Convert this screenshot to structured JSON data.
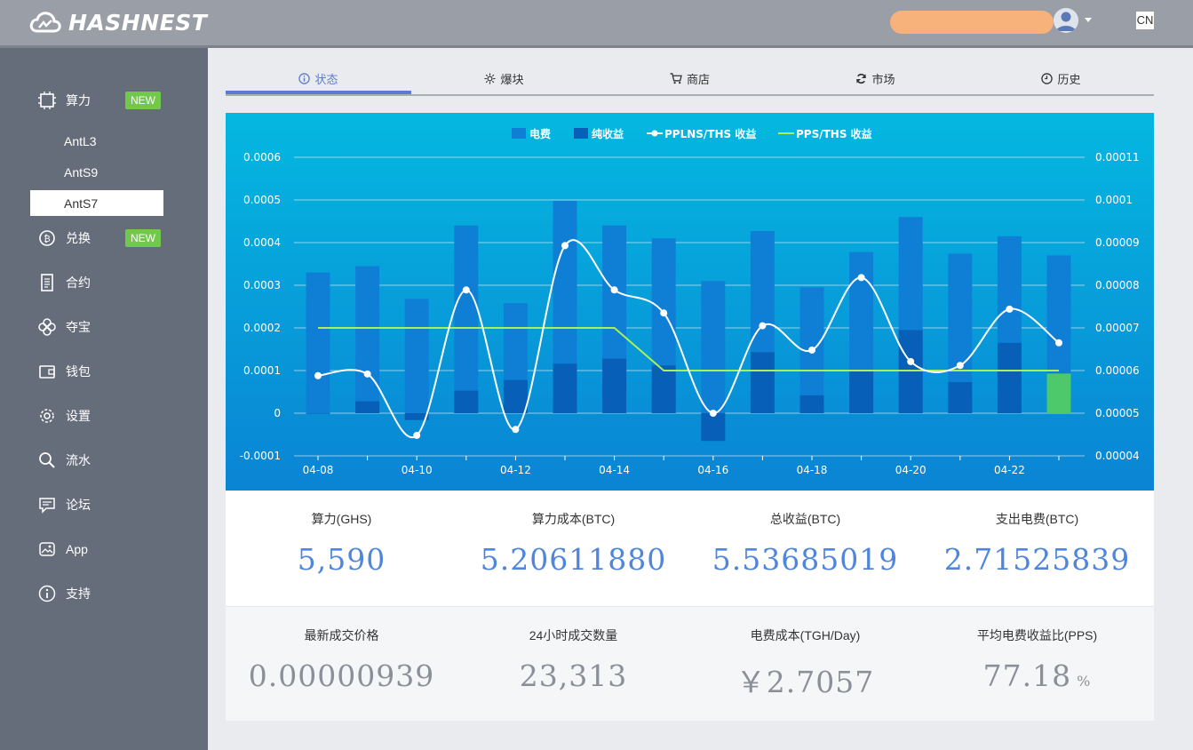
{
  "header": {
    "logo_text": "HASHNEST",
    "lang": "CN",
    "avatar_icon": "user-avatar-icon"
  },
  "sidebar": {
    "items": [
      {
        "label": "算力",
        "icon": "chip-icon",
        "badge": "NEW"
      },
      {
        "label": "兑换",
        "icon": "bitcoin-exchange-icon",
        "badge": "NEW"
      },
      {
        "label": "合约",
        "icon": "contract-icon"
      },
      {
        "label": "夺宝",
        "icon": "clover-icon"
      },
      {
        "label": "钱包",
        "icon": "wallet-icon"
      },
      {
        "label": "设置",
        "icon": "gear-icon"
      },
      {
        "label": "流水",
        "icon": "search-icon"
      },
      {
        "label": "论坛",
        "icon": "chat-icon"
      },
      {
        "label": "App",
        "icon": "app-image-icon"
      },
      {
        "label": "支持",
        "icon": "info-icon"
      }
    ],
    "sub_items": [
      "AntL3",
      "AntS9",
      "AntS7"
    ],
    "active_sub": "AntS7"
  },
  "tabs": [
    {
      "label": "状态",
      "icon": "info-circle-icon",
      "active": true
    },
    {
      "label": "爆块",
      "icon": "sun-icon"
    },
    {
      "label": "商店",
      "icon": "cart-icon"
    },
    {
      "label": "市场",
      "icon": "refresh-icon"
    },
    {
      "label": "历史",
      "icon": "clock-icon"
    }
  ],
  "chart_data": {
    "type": "bar",
    "legend": [
      {
        "name": "电费",
        "color": "#0f7fd6"
      },
      {
        "name": "纯收益",
        "color": "#075fb8"
      },
      {
        "name": "PPLNS/THS 收益",
        "color": "#ffffff"
      },
      {
        "name": "PPS/THS 收益",
        "color": "#a9f05a"
      }
    ],
    "legend_position": "top-center",
    "categories": [
      "04-08",
      "04-09",
      "04-10",
      "04-11",
      "04-12",
      "04-13",
      "04-14",
      "04-15",
      "04-16",
      "04-17",
      "04-18",
      "04-19",
      "04-20",
      "04-21",
      "04-22",
      "04-23"
    ],
    "x_tick_labels": [
      "04-08",
      "04-10",
      "04-12",
      "04-14",
      "04-16",
      "04-18",
      "04-20",
      "04-22"
    ],
    "y_left": {
      "range": [
        -0.0001,
        0.0006
      ],
      "ticks": [
        "0.0006",
        "0.0005",
        "0.0004",
        "0.0003",
        "0.0002",
        "0.0001",
        "0",
        "-0.0001"
      ]
    },
    "y_right": {
      "range": [
        4e-05,
        0.00011
      ],
      "ticks": [
        "0.00011",
        "0.0001",
        "0.00009",
        "0.00008",
        "0.00007",
        "0.00006",
        "0.00005",
        "0.00004"
      ]
    },
    "grid": true,
    "series": [
      {
        "name": "电费",
        "axis": "left",
        "type": "bar",
        "values": [
          0.00033,
          0.000345,
          0.000268,
          0.00044,
          0.000258,
          0.000498,
          0.00044,
          0.00041,
          0.00031,
          0.000427,
          0.000295,
          0.000378,
          0.00046,
          0.000374,
          0.000415,
          0.00037
        ]
      },
      {
        "name": "纯收益",
        "axis": "left",
        "type": "bar",
        "values": [
          0.0,
          2.8e-05,
          -1.6e-05,
          5.3e-05,
          7.8e-05,
          0.000116,
          0.000128,
          0.000112,
          -6.5e-05,
          0.000143,
          4.2e-05,
          0.0001,
          0.000195,
          7.3e-05,
          0.000165,
          9.3e-05
        ],
        "highlight_last_color": "#4dc86a"
      },
      {
        "name": "PPLNS/THS 收益",
        "axis": "right",
        "type": "line",
        "values": [
          5.88e-05,
          5.92e-05,
          4.48e-05,
          7.89e-05,
          4.62e-05,
          8.93e-05,
          7.89e-05,
          7.35e-05,
          5e-05,
          7.05e-05,
          6.48e-05,
          8.18e-05,
          6.21e-05,
          6.12e-05,
          7.44e-05,
          6.65e-05
        ]
      },
      {
        "name": "PPS/THS 收益",
        "axis": "left",
        "type": "line",
        "values": [
          0.0002,
          0.0002,
          0.0002,
          0.0002,
          0.0002,
          0.0002,
          0.0002,
          0.0001,
          0.0001,
          0.0001,
          0.0001,
          0.0001,
          0.0001,
          0.0001,
          0.0001,
          0.0001
        ]
      }
    ]
  },
  "stats_top": [
    {
      "label": "算力(GHS)",
      "value": "5,590"
    },
    {
      "label": "算力成本(BTC)",
      "value": "5.20611880"
    },
    {
      "label": "总收益(BTC)",
      "value": "5.53685019"
    },
    {
      "label": "支出电费(BTC)",
      "value": "2.71525839"
    }
  ],
  "stats_bottom": [
    {
      "label": "最新成交价格",
      "value": "0.00000939"
    },
    {
      "label": "24小时成交数量",
      "value": "23,313"
    },
    {
      "label": "电费成本(TGH/Day)",
      "value": "￥2.7057"
    },
    {
      "label": "平均电费收益比(PPS)",
      "value": "77.18",
      "unit": "%"
    }
  ]
}
